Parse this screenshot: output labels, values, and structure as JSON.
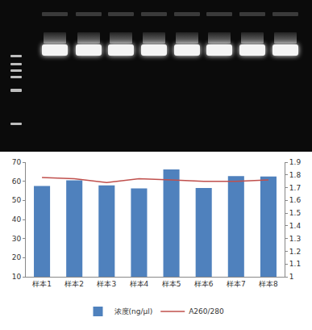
{
  "chart_data": {
    "type": "bar",
    "categories": [
      "样本1",
      "样本2",
      "样本3",
      "样本4",
      "样本5",
      "样本6",
      "样本7",
      "样本8"
    ],
    "series": [
      {
        "name": "浓度(ng/μl)",
        "type": "bar",
        "color": "#4f81bd",
        "values": [
          57.5,
          60.5,
          57.8,
          56.3,
          66.2,
          56.5,
          62.7,
          62.5
        ]
      },
      {
        "name": "A260/280",
        "type": "line",
        "axis": "y2",
        "color": "#c0504d",
        "line_style": "solid",
        "values": [
          1.78,
          1.77,
          1.74,
          1.77,
          1.76,
          1.75,
          1.75,
          1.76
        ]
      }
    ],
    "ylim": [
      10,
      70
    ],
    "yticks": [
      10,
      20,
      30,
      40,
      50,
      60,
      70
    ],
    "y2lim": [
      1,
      1.9
    ],
    "y2ticks": [
      1,
      1.1,
      1.2,
      1.3,
      1.4,
      1.5,
      1.6,
      1.7,
      1.8,
      1.9
    ],
    "grid": false,
    "legend": "bottom"
  }
}
